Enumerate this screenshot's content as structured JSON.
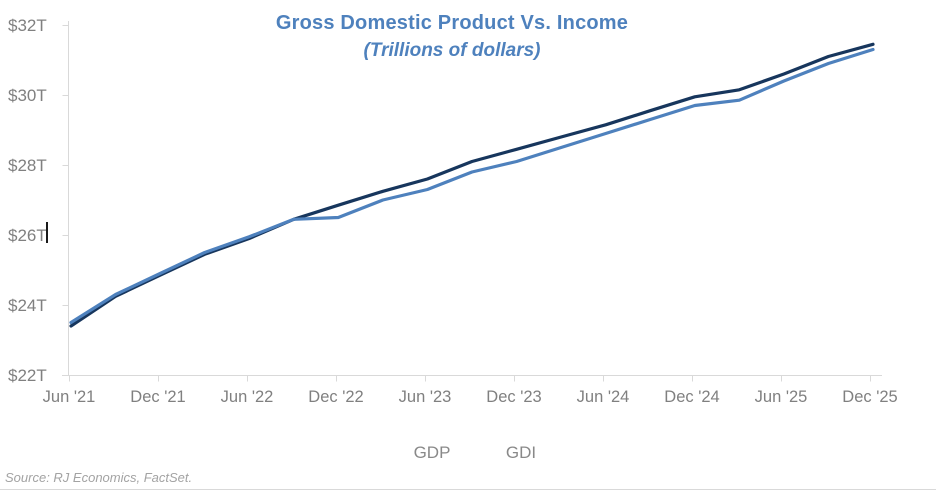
{
  "chart": {
    "title": "Gross Domestic Product Vs. Income",
    "subtitle": "(Trillions of dollars)",
    "source": "Source: RJ Economics, FactSet."
  },
  "chart_data": {
    "type": "line",
    "title": "Gross Domestic Product Vs. Income",
    "subtitle": "(Trillions of dollars)",
    "x": [
      "Jun '21",
      "Sep '21",
      "Dec '21",
      "Mar '22",
      "Jun '22",
      "Sep '22",
      "Dec '22",
      "Mar '23",
      "Jun '23",
      "Sep '23",
      "Dec '23",
      "Mar '24",
      "Jun '24",
      "Sep '24",
      "Dec '24",
      "Mar '25",
      "Jun '25",
      "Sep '25",
      "Dec '25"
    ],
    "x_tick_labels": [
      "Jun '21",
      "Dec '21",
      "Jun '22",
      "Dec '22",
      "Jun '23",
      "Dec '23",
      "Jun '24",
      "Dec '24",
      "Jun '25",
      "Dec '25"
    ],
    "y_tick_labels": [
      "$32T",
      "$30T",
      "$28T",
      "$26T",
      "$24T",
      "$22T"
    ],
    "ylabel_prefix": "$",
    "ylabel_suffix": "T",
    "ylim": [
      22,
      32
    ],
    "y_step": 2,
    "grid": false,
    "legend_position": "bottom",
    "series": [
      {
        "name": "GDP",
        "color": "#17365D",
        "values": [
          23.4,
          24.25,
          24.85,
          25.45,
          25.9,
          26.45,
          26.85,
          27.25,
          27.6,
          28.1,
          28.45,
          28.8,
          29.15,
          29.55,
          29.95,
          30.15,
          30.6,
          31.1,
          31.45
        ]
      },
      {
        "name": "GDI",
        "color": "#4E81BD",
        "values": [
          23.5,
          24.3,
          24.9,
          25.5,
          25.95,
          26.45,
          26.5,
          27.0,
          27.3,
          27.8,
          28.1,
          28.5,
          28.9,
          29.3,
          29.7,
          29.85,
          30.4,
          30.9,
          31.3
        ]
      }
    ],
    "axis_color": "#D9D9D9",
    "tick_label_color": "#808080"
  }
}
